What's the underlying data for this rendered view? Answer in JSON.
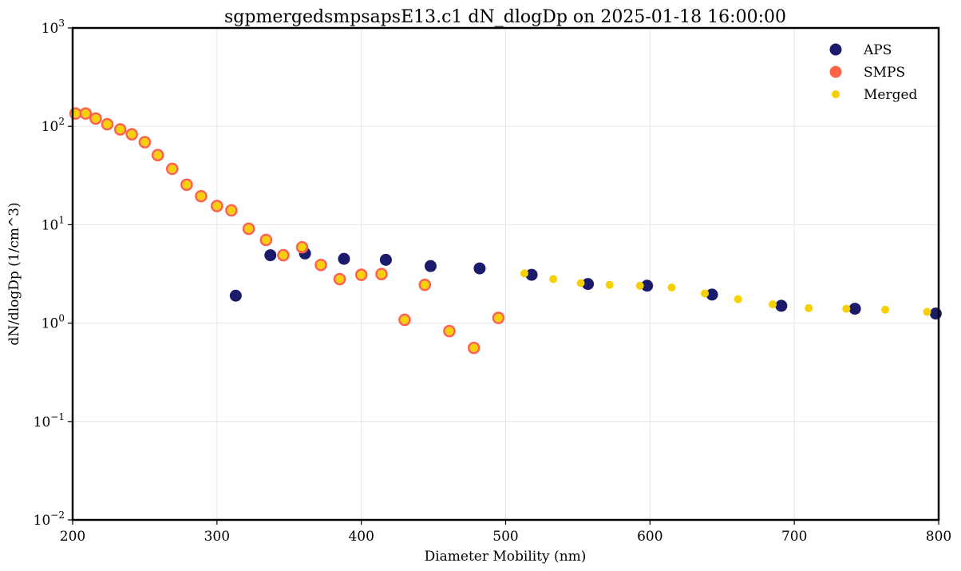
{
  "chart_data": {
    "type": "scatter",
    "title": "sgpmergedsmpsapsE13.c1 dN_dlogDp on 2025-01-18 16:00:00",
    "xlabel": "Diameter Mobility (nm)",
    "ylabel": "dN/dlogDp (1/cm^3)",
    "xlim": [
      200,
      800
    ],
    "ylim": [
      0.01,
      1000
    ],
    "yscale": "log",
    "grid": true,
    "legend_position": "top-right",
    "x_ticks": [
      "200",
      "300",
      "400",
      "500",
      "600",
      "700",
      "800"
    ],
    "y_ticks": [
      {
        "base": "10",
        "exp": "−2"
      },
      {
        "base": "10",
        "exp": "−1"
      },
      {
        "base": "10",
        "exp": "0"
      },
      {
        "base": "10",
        "exp": "1"
      },
      {
        "base": "10",
        "exp": "2"
      },
      {
        "base": "10",
        "exp": "3"
      }
    ],
    "series": [
      {
        "name": "APS",
        "color": "#1b1b6b",
        "marker": "large-dot",
        "points": [
          [
            313,
            1.9
          ],
          [
            337,
            4.9
          ],
          [
            361,
            5.1
          ],
          [
            388,
            4.5
          ],
          [
            417,
            4.4
          ],
          [
            448,
            3.8
          ],
          [
            482,
            3.6
          ],
          [
            518,
            3.1
          ],
          [
            557,
            2.5
          ],
          [
            598,
            2.4
          ],
          [
            643,
            1.95
          ],
          [
            691,
            1.5
          ],
          [
            742,
            1.4
          ],
          [
            798,
            1.25
          ]
        ]
      },
      {
        "name": "SMPS",
        "color": "#ff6347",
        "marker": "ring",
        "points": [
          [
            202,
            135
          ],
          [
            209,
            135
          ],
          [
            216,
            120
          ],
          [
            224,
            105
          ],
          [
            233,
            93
          ],
          [
            241,
            83
          ],
          [
            250,
            69
          ],
          [
            259,
            51
          ],
          [
            269,
            37
          ],
          [
            279,
            25.5
          ],
          [
            289,
            19.5
          ],
          [
            300,
            15.5
          ],
          [
            310,
            14
          ],
          [
            322,
            9.1
          ],
          [
            334,
            7
          ],
          [
            346,
            4.9
          ],
          [
            359,
            5.9
          ],
          [
            372,
            3.9
          ],
          [
            385,
            2.8
          ],
          [
            400,
            3.1
          ],
          [
            414,
            3.15
          ],
          [
            430,
            1.08
          ],
          [
            444,
            2.45
          ],
          [
            461,
            0.83
          ],
          [
            478,
            0.56
          ],
          [
            495,
            1.13
          ]
        ]
      },
      {
        "name": "Merged",
        "color": "#f7d000",
        "marker": "small-dot",
        "points": [
          [
            202,
            135
          ],
          [
            209,
            135
          ],
          [
            216,
            120
          ],
          [
            224,
            105
          ],
          [
            233,
            93
          ],
          [
            241,
            83
          ],
          [
            250,
            69
          ],
          [
            259,
            51
          ],
          [
            269,
            37
          ],
          [
            279,
            25.5
          ],
          [
            289,
            19.5
          ],
          [
            300,
            15.5
          ],
          [
            310,
            14
          ],
          [
            322,
            9.1
          ],
          [
            334,
            7
          ],
          [
            346,
            4.9
          ],
          [
            359,
            5.9
          ],
          [
            372,
            3.9
          ],
          [
            385,
            2.8
          ],
          [
            400,
            3.1
          ],
          [
            414,
            3.15
          ],
          [
            430,
            1.08
          ],
          [
            444,
            2.45
          ],
          [
            461,
            0.83
          ],
          [
            478,
            0.56
          ],
          [
            495,
            1.13
          ],
          [
            513,
            3.2
          ],
          [
            533,
            2.8
          ],
          [
            552,
            2.55
          ],
          [
            572,
            2.45
          ],
          [
            593,
            2.4
          ],
          [
            615,
            2.3
          ],
          [
            638,
            2.0
          ],
          [
            661,
            1.75
          ],
          [
            685,
            1.55
          ],
          [
            710,
            1.42
          ],
          [
            736,
            1.4
          ],
          [
            763,
            1.37
          ],
          [
            792,
            1.3
          ]
        ]
      }
    ]
  }
}
